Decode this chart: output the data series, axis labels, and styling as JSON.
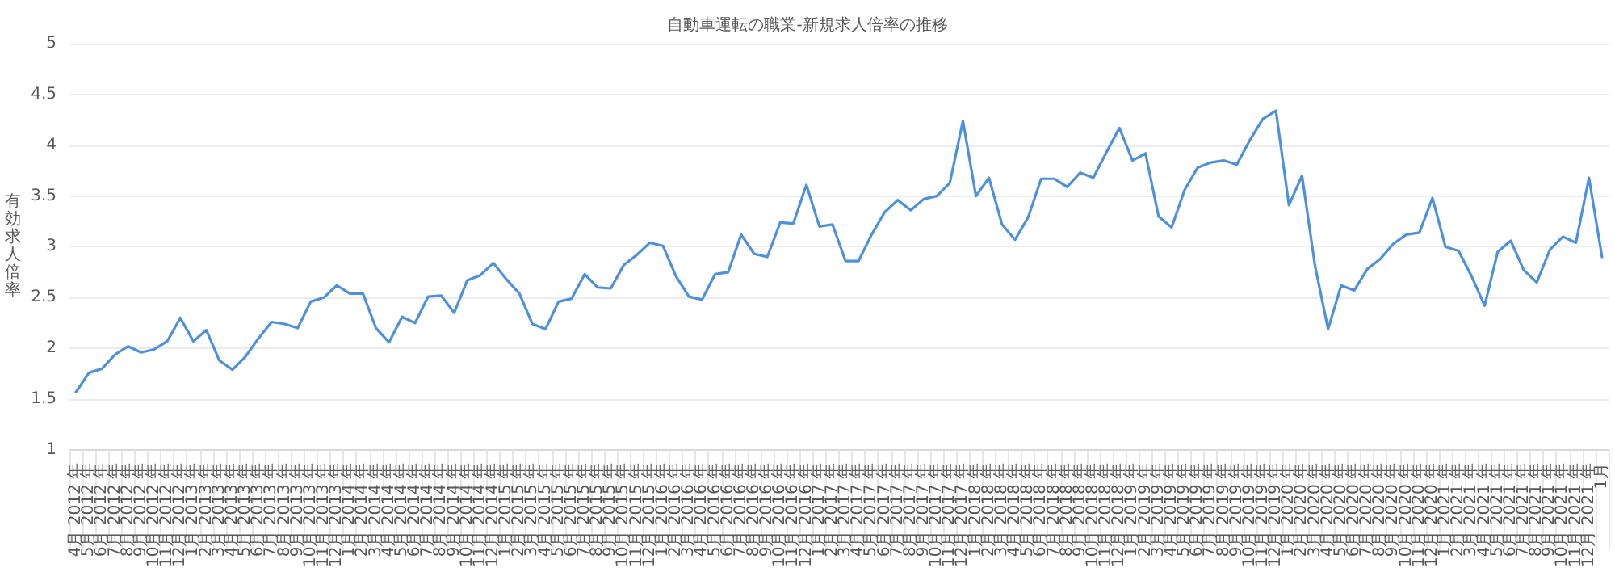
{
  "chart_data": {
    "type": "line",
    "title": "自動車運転の職業-新規求人倍率の推移",
    "ylabel": "有効求人倍率",
    "categories": [
      "4月\n2012\n年",
      "5月\n2012\n年",
      "6月\n2012\n年",
      "7月\n2012\n年",
      "8月\n2012\n年",
      "9月\n2012\n年",
      "10月\n2012\n年",
      "11月\n2012\n年",
      "12月\n2012\n年",
      "1月\n2013\n年",
      "2月\n2013\n年",
      "3月\n2013\n年",
      "4月\n2013\n年",
      "5月\n2013\n年",
      "6月\n2013\n年",
      "7月\n2013\n年",
      "8月\n2013\n年",
      "9月\n2013\n年",
      "10月\n2013\n年",
      "11月\n2013\n年",
      "12月\n2013\n年",
      "1月\n2014\n年",
      "2月\n2014\n年",
      "3月\n2014\n年",
      "4月\n2014\n年",
      "5月\n2014\n年",
      "6月\n2014\n年",
      "7月\n2014\n年",
      "8月\n2014\n年",
      "9月\n2014\n年",
      "10月\n2014\n年",
      "11月\n2014\n年",
      "12月\n2014\n年",
      "1月\n2015\n年",
      "2月\n2015\n年",
      "3月\n2015\n年",
      "4月\n2015\n年",
      "5月\n2015\n年",
      "6月\n2015\n年",
      "7月\n2015\n年",
      "8月\n2015\n年",
      "9月\n2015\n年",
      "10月\n2015\n年",
      "11月\n2015\n年",
      "12月\n2015\n年",
      "1月\n2016\n年",
      "2月\n2016\n年",
      "3月\n2016\n年",
      "4月\n2016\n年",
      "5月\n2016\n年",
      "6月\n2016\n年",
      "7月\n2016\n年",
      "8月\n2016\n年",
      "9月\n2016\n年",
      "10月\n2016\n年",
      "11月\n2016\n年",
      "12月\n2016\n年",
      "1月\n2017\n年",
      "2月\n2017\n年",
      "3月\n2017\n年",
      "4月\n2017\n年",
      "5月\n2017\n年",
      "6月\n2017\n年",
      "7月\n2017\n年",
      "8月\n2017\n年",
      "9月\n2017\n年",
      "10月\n2017\n年",
      "11月\n2017\n年",
      "12月\n2017\n年",
      "1月\n2018\n年",
      "2月\n2018\n年",
      "3月\n2018\n年",
      "4月\n2018\n年",
      "5月\n2018\n年",
      "6月\n2018\n年",
      "7月\n2018\n年",
      "8月\n2018\n年",
      "9月\n2018\n年",
      "10月\n2018\n年",
      "11月\n2018\n年",
      "12月\n2018\n年",
      "1月\n2019\n年",
      "2月\n2019\n年",
      "3月\n2019\n年",
      "4月\n2019\n年",
      "5月\n2019\n年",
      "6月\n2019\n年",
      "7月\n2019\n年",
      "8月\n2019\n年",
      "9月\n2019\n年",
      "10月\n2019\n年",
      "11月\n2019\n年",
      "12月\n2019\n年",
      "1月\n2020\n年",
      "2月\n2020\n年",
      "3月\n2020\n年",
      "4月\n2020\n年",
      "5月\n2020\n年",
      "6月\n2020\n年",
      "7月\n2020\n年",
      "8月\n2020\n年",
      "9月\n2020\n年",
      "10月\n2020\n年",
      "11月\n2020\n年",
      "12月\n2020\n年",
      "1月\n2021\n年",
      "2月\n2021\n年",
      "3月\n2021\n年",
      "4月\n2021\n年",
      "5月\n2021\n年",
      "6月\n2021\n年",
      "7月\n2021\n年",
      "8月\n2021\n年",
      "9月\n2021\n年",
      "10月\n2021\n年",
      "11月\n2021\n年",
      "12月\n2021\n年",
      "1月"
    ],
    "series": [
      {
        "color": "#4d90dd",
        "values": [
          1.57,
          1.76,
          1.8,
          1.94,
          2.02,
          1.96,
          1.99,
          2.07,
          2.3,
          2.07,
          2.18,
          1.88,
          1.79,
          1.92,
          2.1,
          2.26,
          2.24,
          2.2,
          2.46,
          2.5,
          2.62,
          2.54,
          2.54,
          2.2,
          2.06,
          2.31,
          2.25,
          2.51,
          2.52,
          2.35,
          2.67,
          2.72,
          2.84,
          2.68,
          2.54,
          2.24,
          2.19,
          2.46,
          2.49,
          2.73,
          2.6,
          2.59,
          2.82,
          2.92,
          3.04,
          3.01,
          2.71,
          2.51,
          2.48,
          2.73,
          2.75,
          3.12,
          2.93,
          2.9,
          3.24,
          3.23,
          3.61,
          3.2,
          3.22,
          2.86,
          2.86,
          3.12,
          3.34,
          3.46,
          3.36,
          3.47,
          3.5,
          3.63,
          4.24,
          3.5,
          3.68,
          3.22,
          3.07,
          3.29,
          3.67,
          3.67,
          3.59,
          3.73,
          3.68,
          3.93,
          4.17,
          3.85,
          3.92,
          3.3,
          3.19,
          3.56,
          3.78,
          3.83,
          3.85,
          3.81,
          4.05,
          4.26,
          4.34,
          3.41,
          3.7,
          2.81,
          2.19,
          2.62,
          2.57,
          2.78,
          2.88,
          3.03,
          3.12,
          3.14,
          3.48,
          3.0,
          2.96,
          2.71,
          2.42,
          2.95,
          3.06,
          2.77,
          2.65,
          2.97,
          3.1,
          3.04,
          3.68,
          2.9
        ]
      }
    ],
    "ylim": [
      1,
      5
    ],
    "yticks": [
      1,
      1.5,
      2,
      2.5,
      3,
      3.5,
      4,
      4.5,
      5
    ],
    "grid": "y",
    "marker": "none",
    "line_style": "solid"
  }
}
